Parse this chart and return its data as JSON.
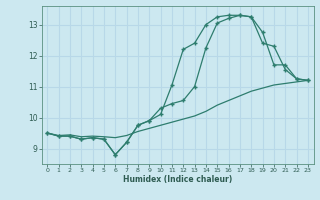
{
  "title": "",
  "xlabel": "Humidex (Indice chaleur)",
  "bg_color": "#cce8f0",
  "grid_color": "#b8d8e8",
  "line_color": "#2e7d6e",
  "xlim": [
    -0.5,
    23.5
  ],
  "ylim": [
    8.5,
    13.6
  ],
  "xticks": [
    0,
    1,
    2,
    3,
    4,
    5,
    6,
    7,
    8,
    9,
    10,
    11,
    12,
    13,
    14,
    15,
    16,
    17,
    18,
    19,
    20,
    21,
    22,
    23
  ],
  "yticks": [
    9,
    10,
    11,
    12,
    13
  ],
  "line1_x": [
    0,
    1,
    2,
    3,
    4,
    5,
    6,
    7,
    8,
    9,
    10,
    11,
    12,
    13,
    14,
    15,
    16,
    17,
    18,
    19,
    20,
    21,
    22,
    23
  ],
  "line1_y": [
    9.5,
    9.4,
    9.4,
    9.3,
    9.35,
    9.3,
    8.8,
    9.2,
    9.75,
    9.9,
    10.3,
    10.45,
    10.55,
    11.0,
    12.25,
    13.05,
    13.2,
    13.3,
    13.25,
    12.4,
    12.3,
    11.55,
    11.25,
    11.2
  ],
  "line2_x": [
    0,
    1,
    2,
    3,
    4,
    5,
    6,
    7,
    8,
    9,
    10,
    11,
    12,
    13,
    14,
    15,
    16,
    17,
    18,
    19,
    20,
    21,
    22,
    23
  ],
  "line2_y": [
    9.5,
    9.4,
    9.4,
    9.3,
    9.35,
    9.3,
    8.8,
    9.2,
    9.75,
    9.9,
    10.1,
    11.05,
    12.2,
    12.4,
    13.0,
    13.25,
    13.3,
    13.3,
    13.25,
    12.75,
    11.7,
    11.7,
    11.25,
    11.2
  ],
  "line3_x": [
    0,
    1,
    2,
    3,
    4,
    5,
    6,
    7,
    8,
    9,
    10,
    11,
    12,
    13,
    14,
    15,
    16,
    17,
    18,
    19,
    20,
    21,
    22,
    23
  ],
  "line3_y": [
    9.5,
    9.42,
    9.44,
    9.38,
    9.4,
    9.38,
    9.35,
    9.42,
    9.55,
    9.65,
    9.75,
    9.85,
    9.95,
    10.05,
    10.2,
    10.4,
    10.55,
    10.7,
    10.85,
    10.95,
    11.05,
    11.1,
    11.15,
    11.2
  ]
}
